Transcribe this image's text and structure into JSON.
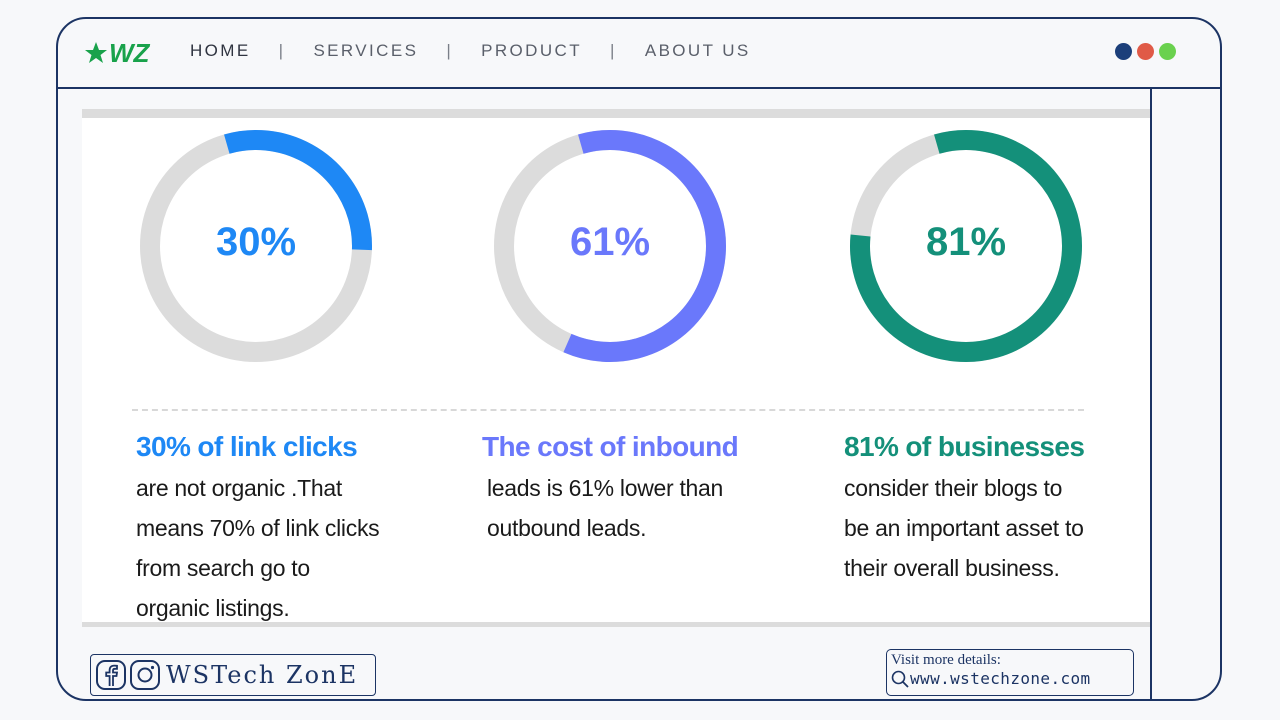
{
  "brand": {
    "logo_text": "WZ",
    "name": "WSTech ZonE"
  },
  "nav": {
    "items": [
      {
        "label": "HOME",
        "active": true
      },
      {
        "label": "SERVICES",
        "active": false
      },
      {
        "label": "PRODUCT",
        "active": false
      },
      {
        "label": "ABOUT US",
        "active": false
      }
    ],
    "separator": "|"
  },
  "window_dots": [
    "#1c3f7a",
    "#e05a47",
    "#6ad14e"
  ],
  "stats": [
    {
      "value_label": "30%",
      "fraction": 0.3,
      "color": "#1e88f5",
      "title": "30% of link clicks",
      "body_lines": [
        "are not organic .That",
        "means 70% of link clicks",
        "from search go to",
        "organic listings."
      ]
    },
    {
      "value_label": "61%",
      "fraction": 0.61,
      "color": "#6a78fb",
      "title": "The cost of inbound",
      "body_lines": [
        "leads is 61% lower than",
        "outbound leads."
      ]
    },
    {
      "value_label": "81%",
      "fraction": 0.81,
      "color": "#14907a",
      "title": "81% of businesses",
      "body_lines": [
        "consider their blogs to",
        "be an important asset to",
        "their overall business."
      ]
    }
  ],
  "ring_track_color": "#dcdcdc",
  "footer": {
    "visit_title": "Visit more details:",
    "visit_url": "www.wstechzone.com",
    "social_icons": [
      "facebook-icon",
      "instagram-icon"
    ]
  }
}
